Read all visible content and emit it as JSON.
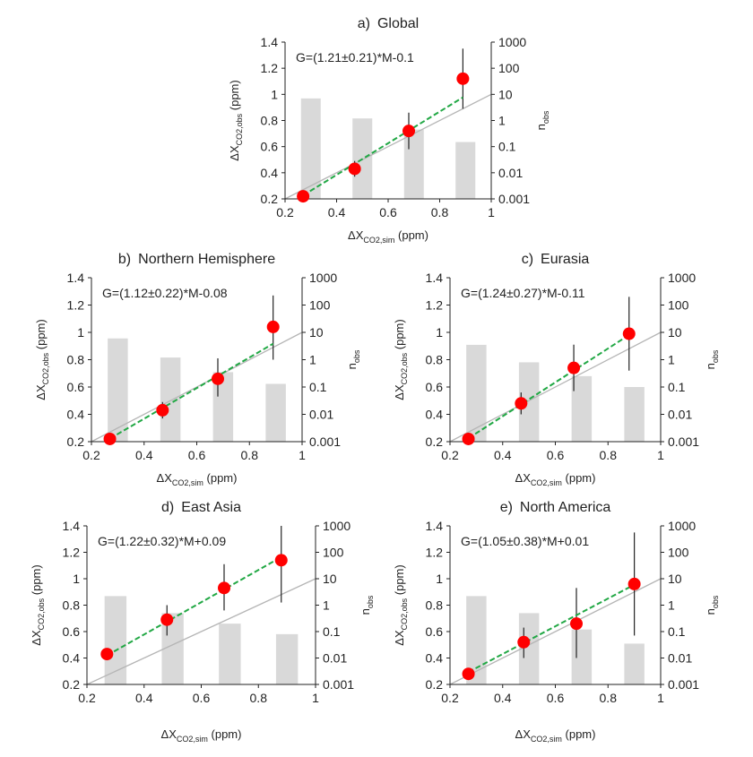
{
  "figure_colors": {
    "bar": "#d9d9d9",
    "point": "#ff0000",
    "fit_line": "#22a845",
    "one_to_one": "#b5b5b5",
    "error_bar": "#222222",
    "equation_text": "#22a845"
  },
  "chart_data": [
    {
      "type": "scatter",
      "panel": "a)",
      "title": "Global",
      "equation": "G=(1.21±0.21)*M-0.1",
      "xlabel_main": "ΔX",
      "xlabel_sub": "CO2,sim",
      "xlabel_unit": " (ppm)",
      "ylabel_main": "ΔX",
      "ylabel_sub": "CO2,obs",
      "ylabel_unit": " (ppm)",
      "y2label_main": "n",
      "y2label_sub": "obs",
      "xlim": [
        0.2,
        1.0
      ],
      "ylim": [
        0.2,
        1.4
      ],
      "xticks": [
        "0.2",
        "0.4",
        "0.6",
        "0.8",
        "1"
      ],
      "yticks": [
        "0.2",
        "0.4",
        "0.6",
        "0.8",
        "1",
        "1.2",
        "1.4"
      ],
      "y2ticks": [
        "0.001",
        "0.01",
        "0.1",
        "1",
        "10",
        "100",
        "1000"
      ],
      "y2_scale": "log",
      "y2lim": [
        0.001,
        1000
      ],
      "x": [
        0.27,
        0.47,
        0.68,
        0.89
      ],
      "y": [
        0.22,
        0.43,
        0.72,
        1.12
      ],
      "yerr_low": [
        0.2,
        0.37,
        0.58,
        0.89
      ],
      "yerr_high": [
        0.24,
        0.49,
        0.86,
        1.35
      ],
      "bars_x": [
        0.3,
        0.5,
        0.7,
        0.9
      ],
      "bars_nobs": [
        7,
        1.2,
        0.45,
        0.15
      ],
      "fit": {
        "slope": 1.21,
        "intercept": -0.1,
        "x_range": [
          0.27,
          0.89
        ]
      },
      "one_to_one": true
    },
    {
      "type": "scatter",
      "panel": "b)",
      "title": "Northern Hemisphere",
      "equation": "G=(1.12±0.22)*M-0.08",
      "xlabel_main": "ΔX",
      "xlabel_sub": "CO2,sim",
      "xlabel_unit": " (ppm)",
      "ylabel_main": "ΔX",
      "ylabel_sub": "CO2,obs",
      "ylabel_unit": " (ppm)",
      "y2label_main": "n",
      "y2label_sub": "obs",
      "xlim": [
        0.2,
        1.0
      ],
      "ylim": [
        0.2,
        1.4
      ],
      "xticks": [
        "0.2",
        "0.4",
        "0.6",
        "0.8",
        "1"
      ],
      "yticks": [
        "0.2",
        "0.4",
        "0.6",
        "0.8",
        "1",
        "1.2",
        "1.4"
      ],
      "y2ticks": [
        "0.001",
        "0.01",
        "0.1",
        "1",
        "10",
        "100",
        "1000"
      ],
      "y2_scale": "log",
      "y2lim": [
        0.001,
        1000
      ],
      "x": [
        0.27,
        0.47,
        0.68,
        0.89
      ],
      "y": [
        0.22,
        0.43,
        0.66,
        1.04
      ],
      "yerr_low": [
        0.2,
        0.37,
        0.53,
        0.8
      ],
      "yerr_high": [
        0.24,
        0.49,
        0.81,
        1.27
      ],
      "bars_x": [
        0.3,
        0.5,
        0.7,
        0.9
      ],
      "bars_nobs": [
        6,
        1.2,
        0.35,
        0.13
      ],
      "fit": {
        "slope": 1.12,
        "intercept": -0.08,
        "x_range": [
          0.27,
          0.89
        ]
      },
      "one_to_one": true
    },
    {
      "type": "scatter",
      "panel": "c)",
      "title": "Eurasia",
      "equation": "G=(1.24±0.27)*M-0.11",
      "xlabel_main": "ΔX",
      "xlabel_sub": "CO2,sim",
      "xlabel_unit": " (ppm)",
      "ylabel_main": "ΔX",
      "ylabel_sub": "CO2,obs",
      "ylabel_unit": " (ppm)",
      "y2label_main": "n",
      "y2label_sub": "obs",
      "xlim": [
        0.2,
        1.0
      ],
      "ylim": [
        0.2,
        1.4
      ],
      "xticks": [
        "0.2",
        "0.4",
        "0.6",
        "0.8",
        "1"
      ],
      "yticks": [
        "0.2",
        "0.4",
        "0.6",
        "0.8",
        "1",
        "1.2",
        "1.4"
      ],
      "y2ticks": [
        "0.001",
        "0.01",
        "0.1",
        "1",
        "10",
        "100",
        "1000"
      ],
      "y2_scale": "log",
      "y2lim": [
        0.001,
        1000
      ],
      "x": [
        0.27,
        0.47,
        0.67,
        0.88
      ],
      "y": [
        0.22,
        0.48,
        0.74,
        0.99
      ],
      "yerr_low": [
        0.2,
        0.4,
        0.57,
        0.72
      ],
      "yerr_high": [
        0.24,
        0.56,
        0.91,
        1.26
      ],
      "bars_x": [
        0.3,
        0.5,
        0.7,
        0.9
      ],
      "bars_nobs": [
        3.5,
        0.8,
        0.25,
        0.1
      ],
      "fit": {
        "slope": 1.24,
        "intercept": -0.11,
        "x_range": [
          0.27,
          0.88
        ]
      },
      "one_to_one": true
    },
    {
      "type": "scatter",
      "panel": "d)",
      "title": "East Asia",
      "equation": "G=(1.22±0.32)*M+0.09",
      "xlabel_main": "ΔX",
      "xlabel_sub": "CO2,sim",
      "xlabel_unit": " (ppm)",
      "ylabel_main": "ΔX",
      "ylabel_sub": "CO2,obs",
      "ylabel_unit": " (ppm)",
      "y2label_main": "n",
      "y2label_sub": "obs",
      "xlim": [
        0.2,
        1.0
      ],
      "ylim": [
        0.2,
        1.4
      ],
      "xticks": [
        "0.2",
        "0.4",
        "0.6",
        "0.8",
        "1"
      ],
      "yticks": [
        "0.2",
        "0.4",
        "0.6",
        "0.8",
        "1",
        "1.2",
        "1.4"
      ],
      "y2ticks": [
        "0.001",
        "0.01",
        "0.1",
        "1",
        "10",
        "100",
        "1000"
      ],
      "y2_scale": "log",
      "y2lim": [
        0.001,
        1000
      ],
      "x": [
        0.27,
        0.48,
        0.68,
        0.88
      ],
      "y": [
        0.43,
        0.69,
        0.93,
        1.14
      ],
      "yerr_low": [
        0.4,
        0.57,
        0.76,
        0.82
      ],
      "yerr_high": [
        0.46,
        0.8,
        1.11,
        1.4
      ],
      "bars_x": [
        0.3,
        0.5,
        0.7,
        0.9
      ],
      "bars_nobs": [
        2.2,
        0.5,
        0.2,
        0.08
      ],
      "fit": {
        "slope": 1.22,
        "intercept": 0.09,
        "x_range": [
          0.27,
          0.88
        ]
      },
      "one_to_one": true
    },
    {
      "type": "scatter",
      "panel": "e)",
      "title": "North America",
      "equation": "G=(1.05±0.38)*M+0.01",
      "xlabel_main": "ΔX",
      "xlabel_sub": "CO2,sim",
      "xlabel_unit": " (ppm)",
      "ylabel_main": "ΔX",
      "ylabel_sub": "CO2,obs",
      "ylabel_unit": " (ppm)",
      "y2label_main": "n",
      "y2label_sub": "obs",
      "xlim": [
        0.2,
        1.0
      ],
      "ylim": [
        0.2,
        1.4
      ],
      "xticks": [
        "0.2",
        "0.4",
        "0.6",
        "0.8",
        "1"
      ],
      "yticks": [
        "0.2",
        "0.4",
        "0.6",
        "0.8",
        "1",
        "1.2",
        "1.4"
      ],
      "y2ticks": [
        "0.001",
        "0.01",
        "0.1",
        "1",
        "10",
        "100",
        "1000"
      ],
      "y2_scale": "log",
      "y2lim": [
        0.001,
        1000
      ],
      "x": [
        0.27,
        0.48,
        0.68,
        0.9
      ],
      "y": [
        0.28,
        0.52,
        0.66,
        0.96
      ],
      "yerr_low": [
        0.26,
        0.4,
        0.4,
        0.57
      ],
      "yerr_high": [
        0.3,
        0.63,
        0.93,
        1.35
      ],
      "bars_x": [
        0.3,
        0.5,
        0.7,
        0.9
      ],
      "bars_nobs": [
        2.2,
        0.5,
        0.12,
        0.035
      ],
      "fit": {
        "slope": 1.05,
        "intercept": 0.01,
        "x_range": [
          0.27,
          0.9
        ]
      },
      "one_to_one": true
    }
  ]
}
